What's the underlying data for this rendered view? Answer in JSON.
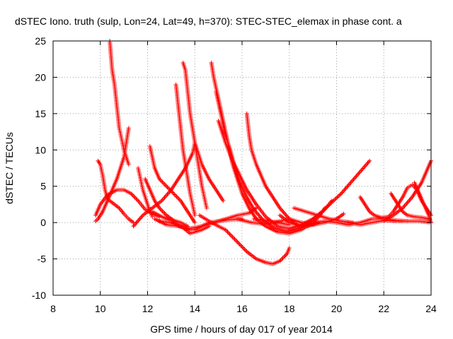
{
  "chart_data": {
    "type": "scatter",
    "title": "dSTEC Iono. truth (sulp, Lon=24, Lat=49, h=370): STEC-STEC_elemax in phase cont. a",
    "xlabel": "GPS time / hours of day 017 of year 2014",
    "ylabel": "dSTEC  / TECUs",
    "xlim": [
      8,
      24
    ],
    "ylim": [
      -10,
      25
    ],
    "xticks": [
      8,
      10,
      12,
      14,
      16,
      18,
      20,
      22,
      24
    ],
    "yticks": [
      -10,
      -5,
      0,
      5,
      10,
      15,
      20,
      25
    ],
    "grid": true,
    "marker": "plus",
    "color": "#ff0000",
    "series": [
      {
        "values": [
          [
            10.4,
            25
          ],
          [
            10.5,
            21
          ],
          [
            10.6,
            19
          ],
          [
            10.7,
            16
          ],
          [
            10.8,
            13
          ],
          [
            10.9,
            11.5
          ],
          [
            11.0,
            10
          ],
          [
            11.1,
            9
          ],
          [
            11.2,
            8
          ]
        ]
      },
      {
        "values": [
          [
            11.2,
            13
          ],
          [
            11.1,
            11
          ],
          [
            11.0,
            9
          ],
          [
            10.85,
            7.5
          ],
          [
            10.7,
            6
          ],
          [
            10.5,
            4.5
          ],
          [
            10.3,
            3
          ],
          [
            10.1,
            1.5
          ],
          [
            9.9,
            0.5
          ],
          [
            9.8,
            0.2
          ]
        ]
      },
      {
        "values": [
          [
            9.9,
            8.5
          ],
          [
            10.0,
            8
          ],
          [
            10.1,
            6.5
          ],
          [
            10.2,
            4.5
          ],
          [
            10.3,
            3.3
          ],
          [
            10.4,
            3
          ],
          [
            10.6,
            2.5
          ],
          [
            10.8,
            2
          ],
          [
            11.0,
            1.2
          ],
          [
            11.2,
            0.5
          ],
          [
            11.4,
            0
          ]
        ]
      },
      {
        "values": [
          [
            9.8,
            1
          ],
          [
            10.0,
            2.5
          ],
          [
            10.3,
            3.8
          ],
          [
            10.7,
            4.5
          ],
          [
            11.0,
            4.5
          ],
          [
            11.3,
            4
          ],
          [
            11.6,
            3
          ],
          [
            11.9,
            1.8
          ],
          [
            12.2,
            1.2
          ],
          [
            12.5,
            0.8
          ]
        ]
      },
      {
        "values": [
          [
            11.6,
            7.5
          ],
          [
            11.7,
            6
          ],
          [
            11.8,
            4.5
          ],
          [
            11.9,
            3.5
          ],
          [
            12.0,
            2.5
          ],
          [
            12.1,
            1.5
          ],
          [
            12.2,
            0.8
          ]
        ]
      },
      {
        "values": [
          [
            11.9,
            6
          ],
          [
            12.1,
            4.5
          ],
          [
            12.3,
            3
          ],
          [
            12.5,
            2
          ],
          [
            12.8,
            1
          ],
          [
            13.1,
            0.3
          ],
          [
            13.4,
            0
          ],
          [
            13.7,
            -0.5
          ]
        ]
      },
      {
        "values": [
          [
            12.1,
            10.5
          ],
          [
            12.3,
            7.5
          ],
          [
            12.5,
            6
          ],
          [
            12.8,
            5
          ],
          [
            13.1,
            4
          ],
          [
            13.4,
            3
          ],
          [
            13.7,
            1.5
          ],
          [
            14.0,
            0
          ]
        ]
      },
      {
        "values": [
          [
            13.2,
            19
          ],
          [
            13.3,
            16
          ],
          [
            13.4,
            13
          ],
          [
            13.5,
            10
          ],
          [
            13.6,
            8
          ],
          [
            13.7,
            6
          ],
          [
            13.8,
            4
          ],
          [
            13.9,
            2.5
          ],
          [
            14.0,
            1
          ]
        ]
      },
      {
        "values": [
          [
            13.5,
            22
          ],
          [
            13.6,
            21
          ],
          [
            13.7,
            18
          ],
          [
            13.8,
            15
          ],
          [
            13.9,
            13
          ],
          [
            14.0,
            11
          ],
          [
            14.1,
            9
          ],
          [
            14.2,
            7
          ],
          [
            14.3,
            5
          ],
          [
            14.4,
            3.5
          ],
          [
            14.5,
            2
          ]
        ]
      },
      {
        "values": [
          [
            11.4,
            -0.5
          ],
          [
            11.8,
            1
          ],
          [
            12.2,
            2
          ],
          [
            12.6,
            3
          ],
          [
            13.0,
            4.5
          ],
          [
            13.3,
            6
          ],
          [
            13.6,
            7.5
          ],
          [
            13.9,
            9.5
          ],
          [
            14.0,
            11
          ],
          [
            14.1,
            10
          ],
          [
            14.3,
            8
          ],
          [
            14.6,
            6
          ],
          [
            15.0,
            4
          ],
          [
            15.2,
            3
          ]
        ]
      },
      {
        "values": [
          [
            12.2,
            1.5
          ],
          [
            12.6,
            0.8
          ],
          [
            13.0,
            0.3
          ],
          [
            13.4,
            -0.5
          ],
          [
            13.8,
            -1
          ],
          [
            14.0,
            -1
          ],
          [
            14.3,
            -0.5
          ],
          [
            14.6,
            0
          ],
          [
            15.0,
            0.2
          ],
          [
            15.5,
            0.4
          ],
          [
            16.0,
            0.5
          ]
        ]
      },
      {
        "values": [
          [
            12.5,
            0.2
          ],
          [
            13.0,
            0
          ],
          [
            13.5,
            -0.7
          ],
          [
            13.8,
            -1.5
          ],
          [
            14.0,
            -1.3
          ],
          [
            14.3,
            -1
          ],
          [
            14.6,
            -0.5
          ]
        ]
      },
      {
        "values": [
          [
            12.3,
            0.5
          ],
          [
            12.8,
            -0.3
          ],
          [
            13.3,
            -0.5
          ],
          [
            13.8,
            -0.8
          ],
          [
            14.3,
            -0.5
          ],
          [
            14.8,
            0
          ],
          [
            15.3,
            0.5
          ],
          [
            15.8,
            1
          ],
          [
            16.3,
            1.3
          ],
          [
            16.6,
            2
          ]
        ]
      },
      {
        "values": [
          [
            14.7,
            22
          ],
          [
            14.8,
            20
          ],
          [
            15.0,
            17
          ],
          [
            15.2,
            14
          ],
          [
            15.4,
            11
          ],
          [
            15.6,
            8
          ],
          [
            15.8,
            6
          ],
          [
            16.0,
            4
          ],
          [
            16.3,
            2
          ],
          [
            16.6,
            0.5
          ],
          [
            17.0,
            -0.5
          ],
          [
            17.5,
            -1.3
          ],
          [
            18.0,
            -1.5
          ],
          [
            18.5,
            -1
          ],
          [
            19.0,
            0
          ],
          [
            19.3,
            1
          ],
          [
            19.5,
            2
          ]
        ]
      },
      {
        "values": [
          [
            14.9,
            18
          ],
          [
            15.1,
            15
          ],
          [
            15.3,
            12
          ],
          [
            15.5,
            10
          ],
          [
            15.7,
            7.5
          ],
          [
            15.9,
            5.5
          ],
          [
            16.2,
            3.5
          ],
          [
            16.5,
            1.8
          ],
          [
            16.9,
            0.3
          ],
          [
            17.4,
            -0.8
          ],
          [
            17.9,
            -1.2
          ],
          [
            18.4,
            -0.8
          ],
          [
            18.9,
            0.2
          ],
          [
            19.4,
            1.5
          ],
          [
            19.8,
            2.8
          ],
          [
            20.2,
            4
          ],
          [
            20.6,
            5.5
          ],
          [
            21.0,
            7
          ],
          [
            21.4,
            8.5
          ]
        ]
      },
      {
        "values": [
          [
            15.0,
            14
          ],
          [
            15.3,
            11
          ],
          [
            15.6,
            8.5
          ],
          [
            15.9,
            6.5
          ],
          [
            16.2,
            4.5
          ],
          [
            16.6,
            2.5
          ],
          [
            17.0,
            0.8
          ],
          [
            17.5,
            -0.5
          ],
          [
            18.0,
            -0.8
          ],
          [
            18.5,
            -0.3
          ],
          [
            19.0,
            0.5
          ],
          [
            19.5,
            1.8
          ],
          [
            19.8,
            3
          ]
        ]
      },
      {
        "values": [
          [
            16.2,
            15
          ],
          [
            16.3,
            12
          ],
          [
            16.4,
            10
          ],
          [
            16.6,
            8
          ],
          [
            16.8,
            6.5
          ],
          [
            17.0,
            5
          ],
          [
            17.3,
            3.5
          ],
          [
            17.6,
            2
          ],
          [
            18.0,
            0.5
          ],
          [
            18.4,
            -0.5
          ],
          [
            18.8,
            -0.5
          ],
          [
            19.2,
            0
          ]
        ]
      },
      {
        "values": [
          [
            14.2,
            1
          ],
          [
            14.6,
            0.2
          ],
          [
            15.0,
            -0.5
          ],
          [
            15.3,
            -1
          ],
          [
            15.6,
            -2
          ],
          [
            15.9,
            -3
          ],
          [
            16.2,
            -4
          ],
          [
            16.6,
            -5
          ],
          [
            17.0,
            -5.5
          ],
          [
            17.3,
            -5.7
          ],
          [
            17.6,
            -5.3
          ],
          [
            17.9,
            -4.3
          ],
          [
            18.0,
            -3.5
          ]
        ]
      },
      {
        "values": [
          [
            15.8,
            0.5
          ],
          [
            16.4,
            0
          ],
          [
            17.0,
            -0.2
          ],
          [
            17.6,
            0.2
          ],
          [
            18.0,
            0.5
          ],
          [
            18.5,
            0
          ],
          [
            19.0,
            -0.3
          ],
          [
            19.5,
            0
          ],
          [
            20.0,
            0.5
          ],
          [
            20.3,
            1.2
          ]
        ]
      },
      {
        "values": [
          [
            17.6,
            1
          ],
          [
            18.0,
            0
          ],
          [
            18.5,
            -0.5
          ],
          [
            19.0,
            0
          ],
          [
            19.5,
            0.2
          ],
          [
            20.0,
            0
          ],
          [
            20.5,
            -0.3
          ],
          [
            21.0,
            0
          ],
          [
            21.5,
            0.5
          ],
          [
            22.0,
            0.5
          ],
          [
            22.5,
            0.3
          ],
          [
            23.0,
            0.2
          ]
        ]
      },
      {
        "values": [
          [
            18.2,
            2
          ],
          [
            18.7,
            1.5
          ],
          [
            19.2,
            1
          ],
          [
            19.7,
            0.5
          ],
          [
            20.2,
            0.2
          ],
          [
            20.7,
            0
          ]
        ]
      },
      {
        "values": [
          [
            21.0,
            3.5
          ],
          [
            21.2,
            2.5
          ],
          [
            21.4,
            1.5
          ],
          [
            21.6,
            1
          ],
          [
            21.9,
            0.7
          ],
          [
            22.2,
            0.8
          ],
          [
            22.4,
            1.5
          ],
          [
            22.6,
            2.5
          ],
          [
            22.8,
            3.5
          ],
          [
            23.0,
            4.8
          ],
          [
            23.2,
            5.2
          ],
          [
            23.4,
            4.5
          ],
          [
            23.6,
            3
          ],
          [
            23.8,
            2
          ],
          [
            24.0,
            1
          ]
        ]
      },
      {
        "values": [
          [
            22.3,
            4
          ],
          [
            22.4,
            3.5
          ],
          [
            22.6,
            2.5
          ],
          [
            22.8,
            1.5
          ],
          [
            23.0,
            1
          ],
          [
            23.3,
            0.8
          ],
          [
            23.6,
            0.7
          ],
          [
            23.9,
            0.5
          ]
        ]
      },
      {
        "values": [
          [
            22.0,
            0.2
          ],
          [
            22.4,
            1
          ],
          [
            22.8,
            2
          ],
          [
            23.2,
            3.5
          ],
          [
            23.6,
            5.5
          ],
          [
            24.0,
            8.5
          ]
        ]
      },
      {
        "values": [
          [
            23.3,
            5.5
          ],
          [
            23.5,
            4
          ],
          [
            23.7,
            2.5
          ],
          [
            23.9,
            1
          ],
          [
            24.0,
            0
          ]
        ]
      },
      {
        "values": [
          [
            20.5,
            0
          ],
          [
            21.0,
            -0.3
          ],
          [
            21.5,
            0
          ],
          [
            22.0,
            0.3
          ],
          [
            22.5,
            0.2
          ],
          [
            23.0,
            0.2
          ],
          [
            23.5,
            0.2
          ],
          [
            24.0,
            0
          ]
        ]
      },
      {
        "values": [
          [
            16.5,
            0.5
          ],
          [
            17.0,
            0.3
          ],
          [
            17.5,
            0
          ],
          [
            18.0,
            -0.3
          ]
        ]
      }
    ]
  }
}
